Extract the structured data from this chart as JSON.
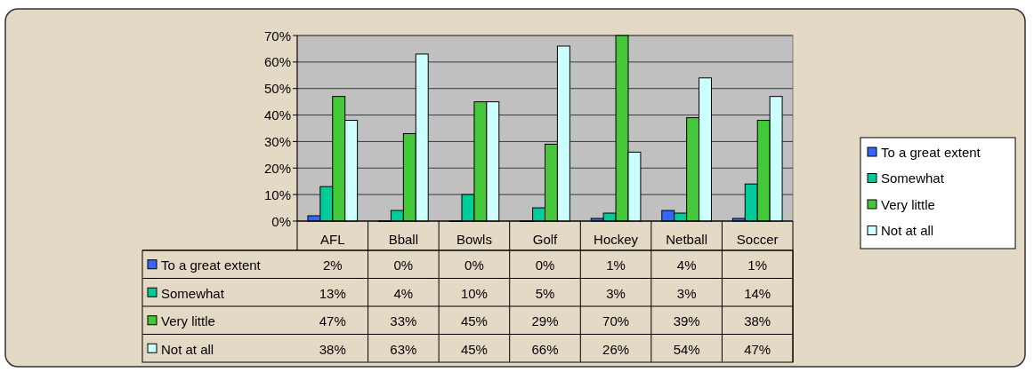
{
  "chart_data": {
    "type": "bar",
    "categories": [
      "AFL",
      "Bball",
      "Bowls",
      "Golf",
      "Hockey",
      "Netball",
      "Soccer"
    ],
    "series": [
      {
        "name": "To a great extent",
        "color": "#3366ff",
        "values": [
          2,
          0,
          0,
          0,
          1,
          4,
          1
        ],
        "value_labels": [
          "2%",
          "0%",
          "0%",
          "0%",
          "1%",
          "4%",
          "1%"
        ]
      },
      {
        "name": "Somewhat",
        "color": "#00cc99",
        "values": [
          13,
          4,
          10,
          5,
          3,
          3,
          14
        ],
        "value_labels": [
          "13%",
          "4%",
          "10%",
          "5%",
          "3%",
          "3%",
          "14%"
        ]
      },
      {
        "name": "Very little",
        "color": "#44c83a",
        "values": [
          47,
          33,
          45,
          29,
          70,
          39,
          38
        ],
        "value_labels": [
          "47%",
          "33%",
          "45%",
          "29%",
          "70%",
          "39%",
          "38%"
        ]
      },
      {
        "name": "Not at all",
        "color": "#ccffff",
        "values": [
          38,
          63,
          45,
          66,
          26,
          54,
          47
        ],
        "value_labels": [
          "38%",
          "63%",
          "45%",
          "66%",
          "26%",
          "54%",
          "47%"
        ]
      }
    ],
    "ylim": [
      0,
      70
    ],
    "yticks": [
      {
        "value": 0,
        "label": "0%"
      },
      {
        "value": 10,
        "label": "10%"
      },
      {
        "value": 20,
        "label": "20%"
      },
      {
        "value": 30,
        "label": "30%"
      },
      {
        "value": 40,
        "label": "40%"
      },
      {
        "value": 50,
        "label": "50%"
      },
      {
        "value": 60,
        "label": "60%"
      },
      {
        "value": 70,
        "label": "70%"
      }
    ],
    "grid": "y",
    "legend": "right"
  }
}
